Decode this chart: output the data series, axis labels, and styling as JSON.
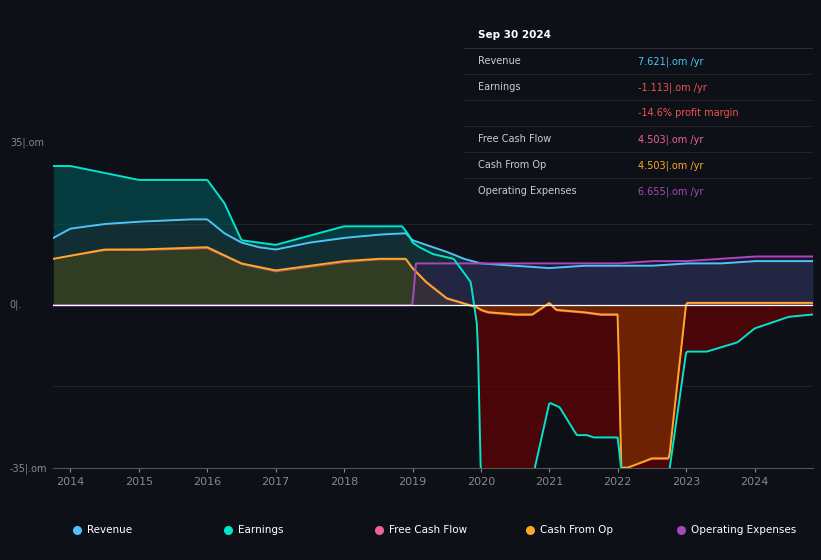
{
  "bg_color": "#0d1117",
  "ylim": [
    -35,
    35
  ],
  "info_box_title": "Sep 30 2024",
  "info_rows": [
    {
      "label": "Revenue",
      "value": "7.621|.om /yr",
      "value_color": "#4fc3f7"
    },
    {
      "label": "Earnings",
      "value": "-1.113|.om /yr",
      "value_color": "#ef5350"
    },
    {
      "label": "",
      "value": "-14.6% profit margin",
      "value_color": "#ef5350"
    },
    {
      "label": "Free Cash Flow",
      "value": "4.503|.om /yr",
      "value_color": "#f06292"
    },
    {
      "label": "Cash From Op",
      "value": "4.503|.om /yr",
      "value_color": "#ffa726"
    },
    {
      "label": "Operating Expenses",
      "value": "6.655|.om /yr",
      "value_color": "#ab47bc"
    }
  ],
  "legend_items": [
    {
      "label": "Revenue",
      "color": "#4fc3f7"
    },
    {
      "label": "Earnings",
      "color": "#00e5cc"
    },
    {
      "label": "Free Cash Flow",
      "color": "#f06292"
    },
    {
      "label": "Cash From Op",
      "color": "#ffa726"
    },
    {
      "label": "Operating Expenses",
      "color": "#ab47bc"
    }
  ],
  "revenue_color": "#4fc3f7",
  "earnings_color": "#00e5cc",
  "fcf_color": "#f06292",
  "cash_color": "#ffa726",
  "opex_color": "#ab47bc",
  "xticks": [
    2014,
    2015,
    2016,
    2017,
    2018,
    2019,
    2020,
    2021,
    2022,
    2023,
    2024
  ],
  "ytick_pos": [
    -35,
    0,
    35
  ],
  "ytick_labels": [
    "-35|.om",
    "0|.",
    "35|.om"
  ]
}
